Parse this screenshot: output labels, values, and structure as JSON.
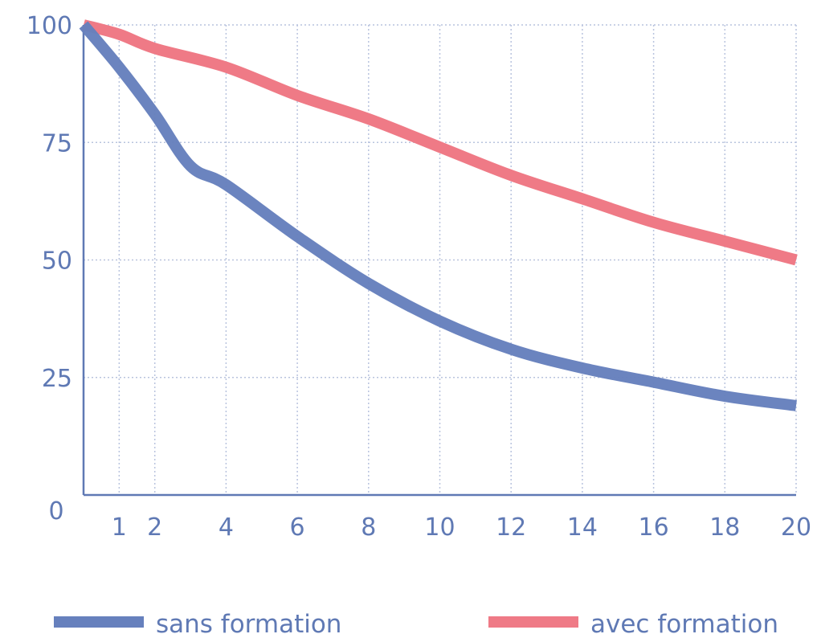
{
  "chart_data": {
    "type": "line",
    "title": "",
    "xlabel": "",
    "ylabel": "",
    "x_ticks": [
      1,
      2,
      4,
      6,
      8,
      10,
      12,
      14,
      16,
      18,
      20
    ],
    "y_ticks": [
      0,
      25,
      50,
      75,
      100
    ],
    "ylim": [
      0,
      100
    ],
    "grid": true,
    "legend_position": "bottom",
    "series": [
      {
        "name": "sans formation",
        "color": "#6680bd",
        "points": [
          {
            "x": 0,
            "y": 100
          },
          {
            "x": 1,
            "y": 91
          },
          {
            "x": 2,
            "y": 81
          },
          {
            "x": 3,
            "y": 70
          },
          {
            "x": 4,
            "y": 66
          },
          {
            "x": 6,
            "y": 55
          },
          {
            "x": 8,
            "y": 45
          },
          {
            "x": 10,
            "y": 37
          },
          {
            "x": 12,
            "y": 31
          },
          {
            "x": 14,
            "y": 27
          },
          {
            "x": 16,
            "y": 24
          },
          {
            "x": 18,
            "y": 21
          },
          {
            "x": 20,
            "y": 19
          }
        ]
      },
      {
        "name": "avec formation",
        "color": "#ef7a86",
        "points": [
          {
            "x": 0,
            "y": 100
          },
          {
            "x": 1,
            "y": 98
          },
          {
            "x": 2,
            "y": 95
          },
          {
            "x": 4,
            "y": 91
          },
          {
            "x": 6,
            "y": 85
          },
          {
            "x": 8,
            "y": 80
          },
          {
            "x": 10,
            "y": 74
          },
          {
            "x": 12,
            "y": 68
          },
          {
            "x": 14,
            "y": 63
          },
          {
            "x": 16,
            "y": 58
          },
          {
            "x": 18,
            "y": 54
          },
          {
            "x": 20,
            "y": 50
          }
        ]
      }
    ]
  }
}
